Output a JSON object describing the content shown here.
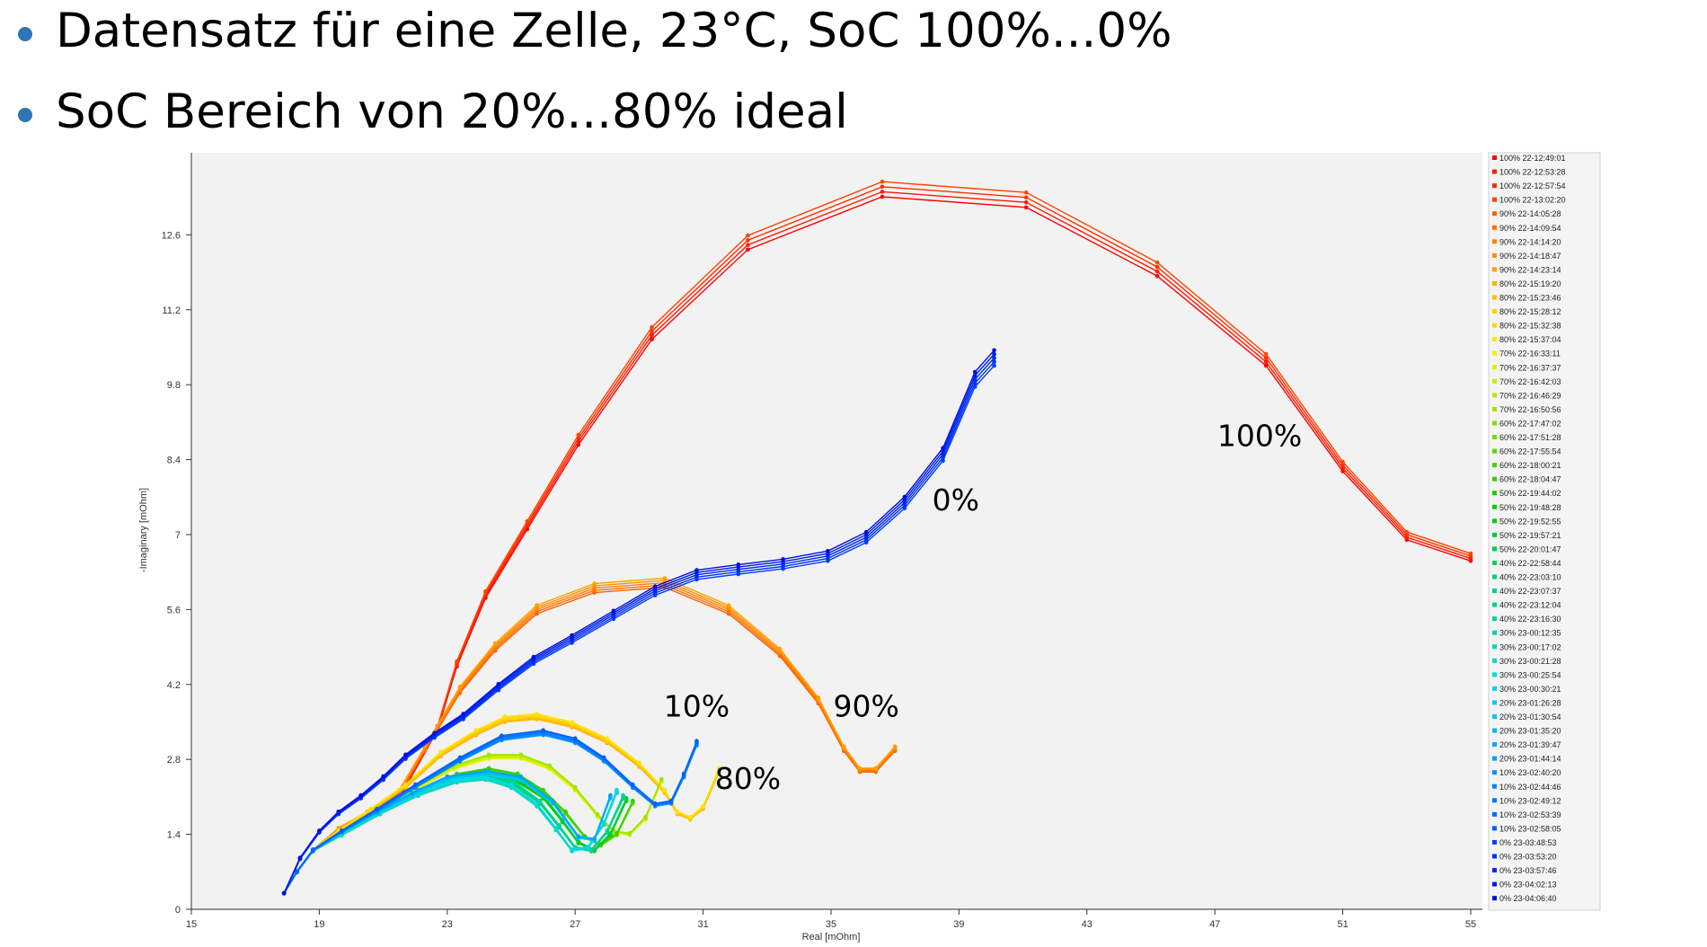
{
  "bullets": [
    "Datensatz für eine Zelle, 23°C, SoC 100%...0%",
    "SoC Bereich von 20%...80% ideal"
  ],
  "chart_data": {
    "type": "line",
    "title": "",
    "xlabel": "Real [mOhm]",
    "ylabel": "-Imaginary [mOhm]",
    "xlim": [
      15,
      55
    ],
    "ylim": [
      0,
      14
    ],
    "xticks": [
      15,
      19,
      23,
      27,
      31,
      35,
      39,
      43,
      47,
      51,
      55
    ],
    "yticks": [
      0,
      1.4,
      2.8,
      4.2,
      5.6,
      7,
      8.4,
      9.8,
      11.2,
      12.6
    ],
    "xtick_labels": [
      "15",
      "19",
      "23",
      "27",
      "31",
      "35",
      "39",
      "43",
      "47",
      "51",
      "55"
    ],
    "ytick_labels": [
      "0",
      "1.4",
      "2.8",
      "4.2",
      "5.6",
      "7",
      "8.4",
      "9.8",
      "11.2",
      "12.6"
    ],
    "legend_position": "right",
    "annotations": [
      {
        "text": "100%",
        "x": 48.4,
        "y": 8.65
      },
      {
        "text": "0%",
        "x": 38.9,
        "y": 7.45
      },
      {
        "text": "90%",
        "x": 36.1,
        "y": 3.6
      },
      {
        "text": "10%",
        "x": 30.8,
        "y": 3.6
      },
      {
        "text": "80%",
        "x": 32.4,
        "y": 2.25
      }
    ],
    "series": [
      {
        "name": "100% 22-12:49:01",
        "group": "100",
        "color": "#ff0000"
      },
      {
        "name": "100% 22-12:53:28",
        "group": "100",
        "color": "#ff1a00"
      },
      {
        "name": "100% 22-12:57:54",
        "group": "100",
        "color": "#ff2e00"
      },
      {
        "name": "100% 22-13:02:20",
        "group": "100",
        "color": "#ff4400"
      },
      {
        "name": "90% 22-14:05:28",
        "group": "90",
        "color": "#ff6000"
      },
      {
        "name": "90% 22-14:09:54",
        "group": "90",
        "color": "#ff7000"
      },
      {
        "name": "90% 22-14:14:20",
        "group": "90",
        "color": "#ff8000"
      },
      {
        "name": "90% 22-14:18:47",
        "group": "90",
        "color": "#ff9000"
      },
      {
        "name": "90% 22-14:23:14",
        "group": "90",
        "color": "#ffa000"
      },
      {
        "name": "80% 22-15:19:20",
        "group": "80",
        "color": "#ffb000"
      },
      {
        "name": "80% 22-15:23:46",
        "group": "80",
        "color": "#ffbe00"
      },
      {
        "name": "80% 22-15:28:12",
        "group": "80",
        "color": "#ffcc00"
      },
      {
        "name": "80% 22-15:32:38",
        "group": "80",
        "color": "#ffd800"
      },
      {
        "name": "80% 22-15:37:04",
        "group": "80",
        "color": "#ffe400"
      },
      {
        "name": "70% 22-16:33:11",
        "group": "70",
        "color": "#f4f000"
      },
      {
        "name": "70% 22-16:37:37",
        "group": "70",
        "color": "#def000"
      },
      {
        "name": "70% 22-16:42:03",
        "group": "70",
        "color": "#c8ee00"
      },
      {
        "name": "70% 22-16:46:29",
        "group": "70",
        "color": "#b2ea00"
      },
      {
        "name": "70% 22-16:50:56",
        "group": "70",
        "color": "#9ce600"
      },
      {
        "name": "60% 22-17:47:02",
        "group": "60",
        "color": "#80e000"
      },
      {
        "name": "60% 22-17:51:28",
        "group": "60",
        "color": "#6cdc00"
      },
      {
        "name": "60% 22-17:55:54",
        "group": "60",
        "color": "#58d800"
      },
      {
        "name": "60% 22-18:00:21",
        "group": "60",
        "color": "#44d400"
      },
      {
        "name": "60% 22-18:04:47",
        "group": "60",
        "color": "#30d000"
      },
      {
        "name": "50% 22-19:44:02",
        "group": "50",
        "color": "#1ccc00"
      },
      {
        "name": "50% 22-19:48:28",
        "group": "50",
        "color": "#10cc10"
      },
      {
        "name": "50% 22-19:52:55",
        "group": "50",
        "color": "#00cc22"
      },
      {
        "name": "50% 22-19:57:21",
        "group": "50",
        "color": "#00cc36"
      },
      {
        "name": "50% 22-20:01:47",
        "group": "50",
        "color": "#00cc4a"
      },
      {
        "name": "40% 22-22:58:44",
        "group": "40",
        "color": "#00d060"
      },
      {
        "name": "40% 22-23:03:10",
        "group": "40",
        "color": "#00d070"
      },
      {
        "name": "40% 22-23:07:37",
        "group": "40",
        "color": "#00d080"
      },
      {
        "name": "40% 22-23:12:04",
        "group": "40",
        "color": "#00d290"
      },
      {
        "name": "40% 22-23:16:30",
        "group": "40",
        "color": "#00d4a0"
      },
      {
        "name": "30% 23-00:12:35",
        "group": "30",
        "color": "#00d6b4"
      },
      {
        "name": "30% 23-00:17:02",
        "group": "30",
        "color": "#00d8c2"
      },
      {
        "name": "30% 23-00:21:28",
        "group": "30",
        "color": "#00dad0"
      },
      {
        "name": "30% 23-00:25:54",
        "group": "30",
        "color": "#00dcdc"
      },
      {
        "name": "30% 23-00:30:21",
        "group": "30",
        "color": "#00d8e8"
      },
      {
        "name": "20% 23-01:26:28",
        "group": "20",
        "color": "#00d0f4"
      },
      {
        "name": "20% 23-01:30:54",
        "group": "20",
        "color": "#00c4f8"
      },
      {
        "name": "20% 23-01:35:20",
        "group": "20",
        "color": "#00b8fa"
      },
      {
        "name": "20% 23-01:39:47",
        "group": "20",
        "color": "#00acfc"
      },
      {
        "name": "20% 23-01:44:14",
        "group": "20",
        "color": "#00a0ff"
      },
      {
        "name": "10% 23-02:40:20",
        "group": "10",
        "color": "#0090ff"
      },
      {
        "name": "10% 23-02:44:46",
        "group": "10",
        "color": "#0084ff"
      },
      {
        "name": "10% 23-02:49:12",
        "group": "10",
        "color": "#0078ff"
      },
      {
        "name": "10% 23-02:53:39",
        "group": "10",
        "color": "#006cff"
      },
      {
        "name": "10% 23-02:58:05",
        "group": "10",
        "color": "#0060ff"
      },
      {
        "name": "0% 23-03:48:53",
        "group": "0",
        "color": "#0040ff"
      },
      {
        "name": "0% 23-03:53:20",
        "group": "0",
        "color": "#0034f8"
      },
      {
        "name": "0% 23-03:57:46",
        "group": "0",
        "color": "#0028f0"
      },
      {
        "name": "0% 23-04:02:13",
        "group": "0",
        "color": "#001ce8"
      },
      {
        "name": "0% 23-04:06:40",
        "group": "0",
        "color": "#0010e0"
      }
    ],
    "curves": {
      "100": {
        "x": [
          17.9,
          18.3,
          18.8,
          19.6,
          20.5,
          21.5,
          22.7,
          23.3,
          24.2,
          25.5,
          27.1,
          29.4,
          32.4,
          36.6,
          41.1,
          45.2,
          48.6,
          51.0,
          53.0,
          55.0
        ],
        "y": [
          0.3,
          0.7,
          1.1,
          1.5,
          1.8,
          2.1,
          3.4,
          4.6,
          5.9,
          7.2,
          8.8,
          10.8,
          12.5,
          13.5,
          13.3,
          12.0,
          10.3,
          8.3,
          7.0,
          6.6
        ]
      },
      "90": {
        "x": [
          17.9,
          18.3,
          18.8,
          19.6,
          20.5,
          21.5,
          22.3,
          23.4,
          24.5,
          25.8,
          27.6,
          29.8,
          31.8,
          33.4,
          34.6,
          35.4,
          35.9,
          36.4,
          37.0
        ],
        "y": [
          0.3,
          0.7,
          1.1,
          1.5,
          1.8,
          2.2,
          3.0,
          4.1,
          4.9,
          5.6,
          6.0,
          6.1,
          5.6,
          4.8,
          3.9,
          3.0,
          2.6,
          2.6,
          3.0
        ]
      },
      "80": {
        "x": [
          17.9,
          18.3,
          18.8,
          19.6,
          20.6,
          21.7,
          22.8,
          23.9,
          24.8,
          25.8,
          26.9,
          28.0,
          29.0,
          29.8,
          30.2,
          30.6,
          31.0,
          31.5
        ],
        "y": [
          0.3,
          0.7,
          1.1,
          1.45,
          1.85,
          2.3,
          2.9,
          3.3,
          3.55,
          3.6,
          3.45,
          3.15,
          2.7,
          2.2,
          1.8,
          1.7,
          1.9,
          2.6
        ]
      },
      "70": {
        "x": [
          17.9,
          18.3,
          18.8,
          19.7,
          20.8,
          22.0,
          23.2,
          24.3,
          25.3,
          26.2,
          27.0,
          27.7,
          28.2,
          28.7,
          29.2,
          29.7
        ],
        "y": [
          0.3,
          0.7,
          1.1,
          1.4,
          1.8,
          2.25,
          2.65,
          2.85,
          2.85,
          2.65,
          2.25,
          1.75,
          1.45,
          1.4,
          1.7,
          2.4
        ]
      },
      "60": {
        "x": [
          17.9,
          18.3,
          18.8,
          19.7,
          20.9,
          22.1,
          23.3,
          24.3,
          25.2,
          26.0,
          26.7,
          27.3,
          27.8,
          28.3,
          28.8
        ],
        "y": [
          0.3,
          0.7,
          1.1,
          1.4,
          1.8,
          2.2,
          2.5,
          2.6,
          2.5,
          2.2,
          1.8,
          1.35,
          1.2,
          1.4,
          2.0
        ]
      },
      "50": {
        "x": [
          17.9,
          18.3,
          18.8,
          19.7,
          20.9,
          22.1,
          23.3,
          24.3,
          25.2,
          26.0,
          26.6,
          27.1,
          27.6,
          28.1,
          28.6
        ],
        "y": [
          0.3,
          0.7,
          1.1,
          1.4,
          1.8,
          2.2,
          2.45,
          2.55,
          2.4,
          2.1,
          1.65,
          1.25,
          1.1,
          1.4,
          2.05
        ]
      },
      "40": {
        "x": [
          17.9,
          18.3,
          18.8,
          19.7,
          20.9,
          22.1,
          23.3,
          24.3,
          25.1,
          25.9,
          26.5,
          27.0,
          27.5,
          28.0,
          28.5
        ],
        "y": [
          0.3,
          0.7,
          1.1,
          1.4,
          1.8,
          2.2,
          2.45,
          2.5,
          2.35,
          2.0,
          1.55,
          1.15,
          1.1,
          1.45,
          2.1
        ]
      },
      "30": {
        "x": [
          17.9,
          18.3,
          18.8,
          19.7,
          20.9,
          22.1,
          23.3,
          24.2,
          25.0,
          25.8,
          26.4,
          26.9,
          27.4,
          27.9,
          28.3
        ],
        "y": [
          0.3,
          0.7,
          1.1,
          1.4,
          1.8,
          2.15,
          2.4,
          2.45,
          2.3,
          1.95,
          1.5,
          1.1,
          1.15,
          1.6,
          2.2
        ]
      },
      "20": {
        "x": [
          17.9,
          18.3,
          18.8,
          19.7,
          20.8,
          21.9,
          23.0,
          24.2,
          25.3,
          26.3,
          27.1,
          27.6,
          28.1
        ],
        "y": [
          0.3,
          0.7,
          1.1,
          1.45,
          1.8,
          2.15,
          2.45,
          2.55,
          2.45,
          2.0,
          1.35,
          1.3,
          2.1
        ]
      },
      "10": {
        "x": [
          17.9,
          18.3,
          18.8,
          19.7,
          20.8,
          22.0,
          23.4,
          24.7,
          26.0,
          27.0,
          27.9,
          28.8,
          29.5,
          30.0,
          30.4,
          30.8
        ],
        "y": [
          0.3,
          0.7,
          1.1,
          1.45,
          1.85,
          2.3,
          2.8,
          3.2,
          3.3,
          3.15,
          2.8,
          2.3,
          1.95,
          2.0,
          2.5,
          3.1
        ]
      },
      "0": {
        "x": [
          17.9,
          18.4,
          19.0,
          19.6,
          20.3,
          21.0,
          21.7,
          22.6,
          23.5,
          24.6,
          25.7,
          26.9,
          28.2,
          29.5,
          30.8,
          32.1,
          33.5,
          34.9,
          36.1,
          37.3,
          38.5,
          39.5,
          40.1
        ],
        "y": [
          0.3,
          0.95,
          1.45,
          1.8,
          2.1,
          2.45,
          2.85,
          3.25,
          3.6,
          4.15,
          4.65,
          5.05,
          5.5,
          5.95,
          6.25,
          6.35,
          6.45,
          6.6,
          6.95,
          7.6,
          8.5,
          9.9,
          10.3
        ]
      }
    }
  }
}
